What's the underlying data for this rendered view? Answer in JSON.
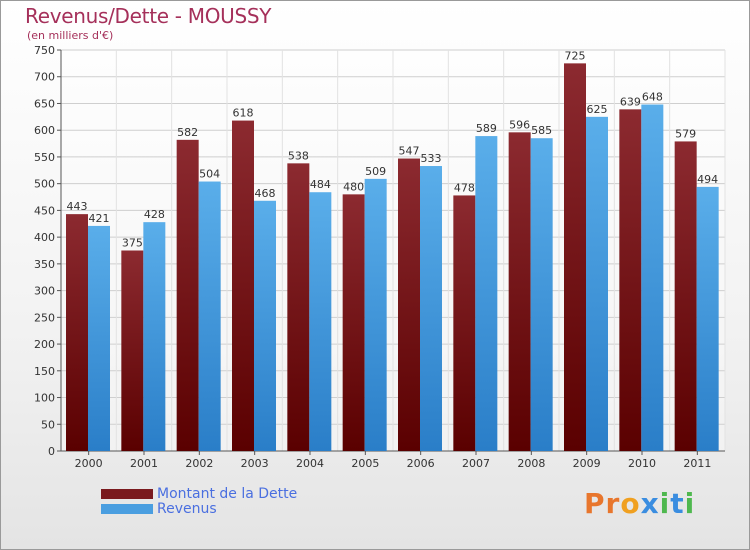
{
  "header": {
    "title": "Revenus/Dette - MOUSSY",
    "subtitle": "(en milliers d'€)"
  },
  "legend": {
    "items": [
      {
        "label": "Montant de la Dette",
        "color": "#7a1a1e"
      },
      {
        "label": "Revenus",
        "color": "#4a9ee0"
      }
    ]
  },
  "logo": {
    "text": "Proxiti"
  },
  "colors": {
    "debt_top": "#8c2a30",
    "debt_bottom": "#5a0000",
    "revenue_top": "#5aaeea",
    "revenue_bottom": "#2a7ec8",
    "label_color": "#333333",
    "grid": "#cfcfcf"
  },
  "chart_data": {
    "type": "bar",
    "title": "Revenus/Dette - MOUSSY",
    "subtitle": "(en milliers d'€)",
    "xlabel": "",
    "ylabel": "",
    "categories": [
      "2000",
      "2001",
      "2002",
      "2003",
      "2004",
      "2005",
      "2006",
      "2007",
      "2008",
      "2009",
      "2010",
      "2011"
    ],
    "series": [
      {
        "name": "Montant de la Dette",
        "values": [
          443,
          375,
          582,
          618,
          538,
          480,
          547,
          478,
          596,
          725,
          639,
          579
        ]
      },
      {
        "name": "Revenus",
        "values": [
          421,
          428,
          504,
          468,
          484,
          509,
          533,
          589,
          585,
          625,
          648,
          494
        ]
      }
    ],
    "ylim": [
      0,
      750
    ],
    "yticks": [
      0,
      50,
      100,
      150,
      200,
      250,
      300,
      350,
      400,
      450,
      500,
      550,
      600,
      650,
      700,
      750
    ],
    "grid": true,
    "legend_position": "bottom-left"
  }
}
